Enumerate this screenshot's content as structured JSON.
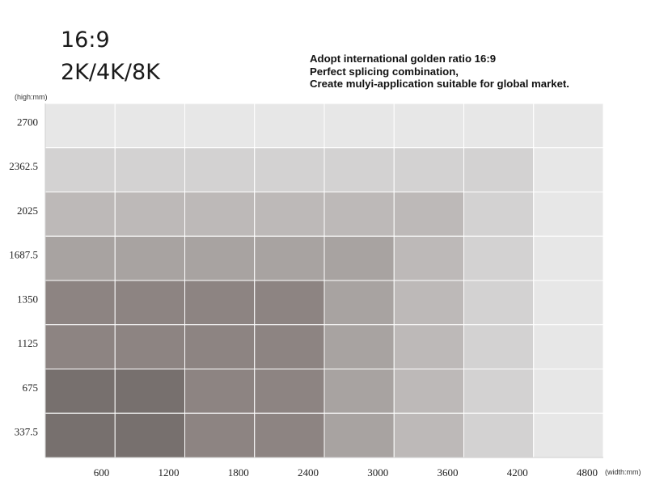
{
  "header": {
    "title_lines": [
      "16:9",
      "2K/4K/8K"
    ],
    "tagline_lines": [
      "Adopt international golden ratio 16:9",
      "Perfect splicing combination,",
      "Create mulyi-application suitable for global market."
    ]
  },
  "chart_data": {
    "type": "heatmap",
    "x_axis": {
      "unit_label": "(width:mm)",
      "tick_labels": [
        "600",
        "1200",
        "1800",
        "2400",
        "3000",
        "3600",
        "4200",
        "4800"
      ],
      "values": [
        600,
        1200,
        1800,
        2400,
        3000,
        3600,
        4200,
        4800
      ],
      "range": [
        0,
        4800
      ]
    },
    "y_axis": {
      "unit_label": "(high:mm)",
      "tick_labels": [
        "2700",
        "2362.5",
        "2025",
        "1687.5",
        "1350",
        "1125",
        "675",
        "337.5"
      ],
      "values": [
        2700,
        2362.5,
        2025,
        1687.5,
        1350,
        1125,
        675,
        337.5
      ],
      "range": [
        0,
        2700
      ]
    },
    "grid": true,
    "cell_colors": [
      [
        "#e7e7e7",
        "#e7e7e7",
        "#e7e7e7",
        "#e7e7e7",
        "#e7e7e7",
        "#e7e7e7",
        "#e7e7e7",
        "#e7e7e7"
      ],
      [
        "#d3d2d2",
        "#d3d2d2",
        "#d3d2d2",
        "#d3d2d2",
        "#d3d2d2",
        "#d3d2d2",
        "#d3d2d2",
        "#e7e7e7"
      ],
      [
        "#bdb9b8",
        "#bdb9b8",
        "#bdb9b8",
        "#bdb9b8",
        "#bdb9b8",
        "#bdb9b8",
        "#d3d2d2",
        "#e7e7e7"
      ],
      [
        "#a8a3a1",
        "#a8a3a1",
        "#a8a3a1",
        "#a8a3a1",
        "#a8a3a1",
        "#bdb9b8",
        "#d3d2d2",
        "#e7e7e7"
      ],
      [
        "#8d8482",
        "#8d8482",
        "#8d8482",
        "#8d8482",
        "#a8a3a1",
        "#bdb9b8",
        "#d3d2d2",
        "#e7e7e7"
      ],
      [
        "#8d8482",
        "#8d8482",
        "#8d8482",
        "#8d8482",
        "#a8a3a1",
        "#bdb9b8",
        "#d3d2d2",
        "#e7e7e7"
      ],
      [
        "#77706e",
        "#77706e",
        "#8d8482",
        "#8d8482",
        "#a8a3a1",
        "#bdb9b8",
        "#d3d2d2",
        "#e7e7e7"
      ],
      [
        "#77706e",
        "#77706e",
        "#8d8482",
        "#8d8482",
        "#a8a3a1",
        "#bdb9b8",
        "#d3d2d2",
        "#e7e7e7"
      ]
    ],
    "colors": {
      "grid_line": "#ffffff",
      "axis_line": "#cfcfcf"
    }
  }
}
